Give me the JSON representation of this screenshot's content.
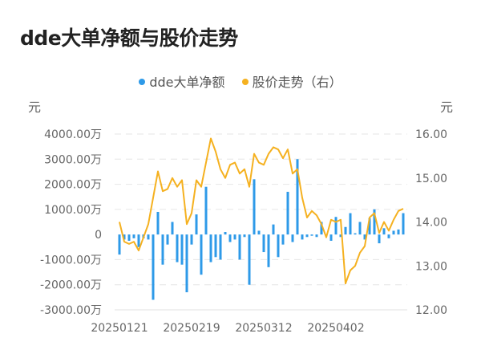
{
  "title": "dde大单净额与股价走势",
  "legend": [
    {
      "label": "dde大单净额",
      "color": "#2e9ae8"
    },
    {
      "label": "股价走势（右）",
      "color": "#f5b120"
    }
  ],
  "left_axis_unit": "元",
  "right_axis_unit": "元",
  "chart_data": {
    "type": "bar+line",
    "title": "dde大单净额与股价走势",
    "x_tick_labels": [
      "20250121",
      "20250219",
      "20250312",
      "20250402"
    ],
    "left_axis": {
      "label": "元",
      "ticks": [
        "4000.00万",
        "3000.00万",
        "2000.00万",
        "1000.00万",
        "0",
        "-1000.00万",
        "-2000.00万",
        "-3000.00万"
      ],
      "range": [
        -3000,
        4000
      ],
      "unit": "万元"
    },
    "right_axis": {
      "label": "元",
      "ticks": [
        "16.00",
        "15.00",
        "14.00",
        "13.00",
        "12.00"
      ],
      "range": [
        12,
        16
      ]
    },
    "grid": true,
    "legend_position": "top",
    "series": [
      {
        "name": "dde大单净额",
        "type": "bar",
        "axis": "left",
        "color": "#2e9ae8",
        "values": [
          -800,
          -200,
          -250,
          -150,
          -500,
          -150,
          -200,
          -2600,
          900,
          -1200,
          -400,
          500,
          -1100,
          -1200,
          -2300,
          -400,
          800,
          -1600,
          1900,
          -1100,
          -900,
          -1000,
          100,
          -300,
          -200,
          -1000,
          -100,
          -2000,
          2200,
          150,
          -700,
          -1300,
          400,
          -900,
          -400,
          1700,
          -300,
          3000,
          -200,
          -100,
          -50,
          -100,
          500,
          -50,
          -250,
          700,
          -100,
          300,
          850,
          50,
          500,
          -200,
          650,
          1000,
          -350,
          250,
          -150,
          150,
          200,
          850
        ]
      },
      {
        "name": "股价走势（右）",
        "type": "line",
        "axis": "right",
        "color": "#f5b120",
        "values": [
          14.0,
          13.55,
          13.5,
          13.55,
          13.35,
          13.65,
          13.95,
          14.55,
          15.15,
          14.7,
          14.75,
          15.0,
          14.8,
          14.95,
          13.95,
          14.2,
          14.95,
          14.8,
          15.35,
          15.9,
          15.6,
          15.2,
          15.0,
          15.3,
          15.35,
          15.1,
          15.2,
          14.8,
          15.55,
          15.35,
          15.3,
          15.55,
          15.7,
          15.65,
          15.45,
          15.65,
          15.1,
          15.2,
          14.55,
          14.1,
          14.25,
          14.15,
          13.95,
          13.65,
          14.05,
          14.0,
          14.05,
          12.6,
          12.9,
          13.0,
          13.3,
          13.45,
          14.1,
          14.2,
          13.75,
          14.0,
          13.8,
          14.05,
          14.25,
          14.3
        ]
      }
    ]
  }
}
